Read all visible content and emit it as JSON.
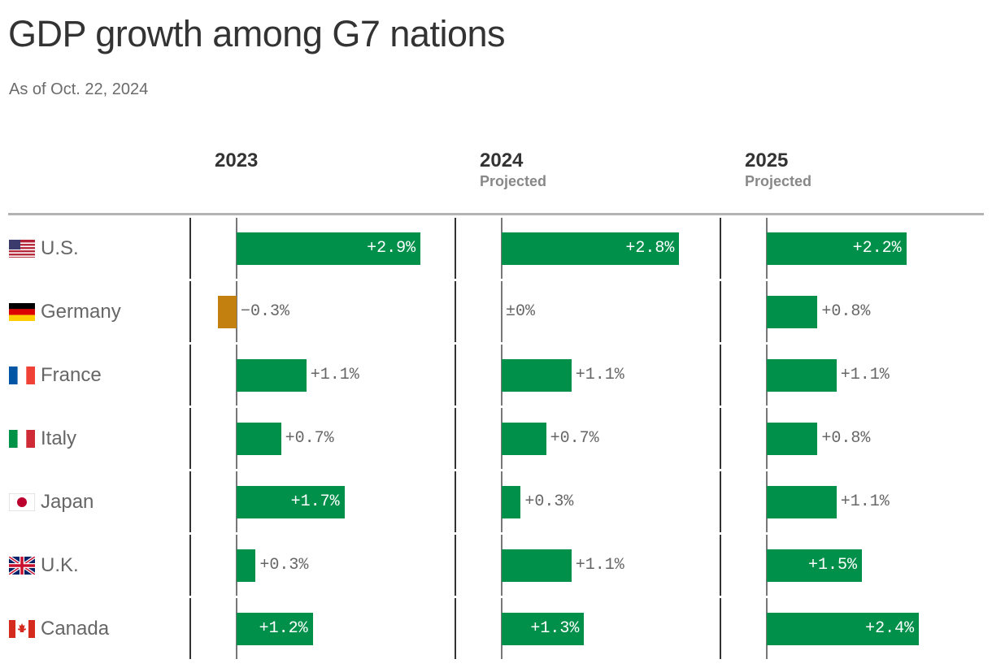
{
  "title": "GDP growth among G7 nations",
  "subtitle": "As of Oct. 22, 2024",
  "chart_data": {
    "type": "bar",
    "orientation": "horizontal",
    "layout": "small-multiples",
    "title": "GDP growth among G7 nations",
    "subtitle": "As of Oct. 22, 2024",
    "categories": [
      "U.S.",
      "Germany",
      "France",
      "Italy",
      "Japan",
      "U.K.",
      "Canada"
    ],
    "category_icons": [
      "flag-us-icon",
      "flag-germany-icon",
      "flag-france-icon",
      "flag-italy-icon",
      "flag-japan-icon",
      "flag-uk-icon",
      "flag-canada-icon"
    ],
    "panels": [
      {
        "year": "2023",
        "note": "",
        "values": [
          2.9,
          -0.3,
          1.1,
          0.7,
          1.7,
          0.3,
          1.2
        ],
        "labels": [
          "+2.9%",
          "−0.3%",
          "+1.1%",
          "+0.7%",
          "+1.7%",
          "+0.3%",
          "+1.2%"
        ]
      },
      {
        "year": "2024",
        "note": "Projected",
        "values": [
          2.8,
          0,
          1.1,
          0.7,
          0.3,
          1.1,
          1.3
        ],
        "labels": [
          "+2.8%",
          "±0%",
          "+1.1%",
          "+0.7%",
          "+0.3%",
          "+1.1%",
          "+1.3%"
        ]
      },
      {
        "year": "2025",
        "note": "Projected",
        "values": [
          2.2,
          0.8,
          1.1,
          0.8,
          1.1,
          1.5,
          2.4
        ],
        "labels": [
          "+2.2%",
          "+0.8%",
          "+1.1%",
          "+0.8%",
          "+1.1%",
          "+1.5%",
          "+2.4%"
        ]
      }
    ],
    "unit": "%",
    "colors": {
      "positive": "#00904a",
      "negative": "#c4800e",
      "label_inside": "#ffffff",
      "label_outside": "#666666"
    },
    "grid": false,
    "legend": "none"
  }
}
